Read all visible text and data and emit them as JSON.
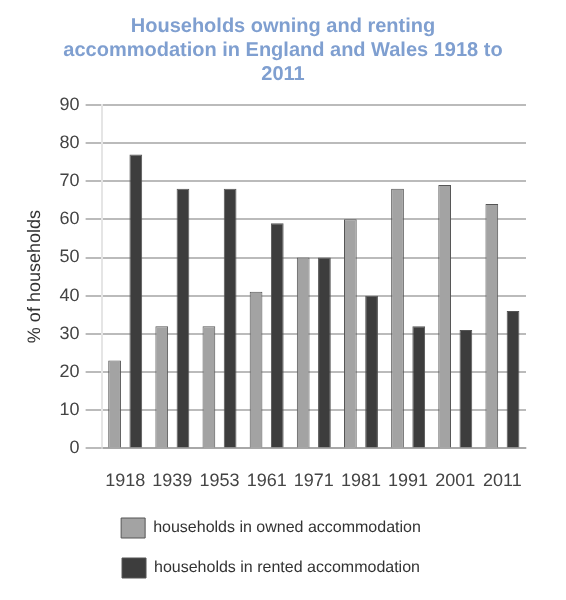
{
  "chart_data": {
    "type": "bar",
    "title": "Households owning and renting accommodation in England and Wales 1918 to 2011",
    "ylabel": "% of households",
    "categories": [
      "1918",
      "1939",
      "1953",
      "1961",
      "1971",
      "1981",
      "1991",
      "2001",
      "2011"
    ],
    "series": [
      {
        "name": "households in owned accommodation",
        "color": "#a3a3a3",
        "values": [
          23,
          32,
          32,
          41,
          50,
          60,
          68,
          69,
          64
        ]
      },
      {
        "name": "households in rented accommodation",
        "color": "#3d3d3d",
        "values": [
          77,
          68,
          68,
          59,
          50,
          40,
          32,
          31,
          36
        ]
      }
    ],
    "ylim": [
      0,
      90
    ],
    "yticks": [
      0,
      10,
      20,
      30,
      40,
      50,
      60,
      70,
      80,
      90
    ],
    "grid": "y",
    "legend": "bottom"
  }
}
